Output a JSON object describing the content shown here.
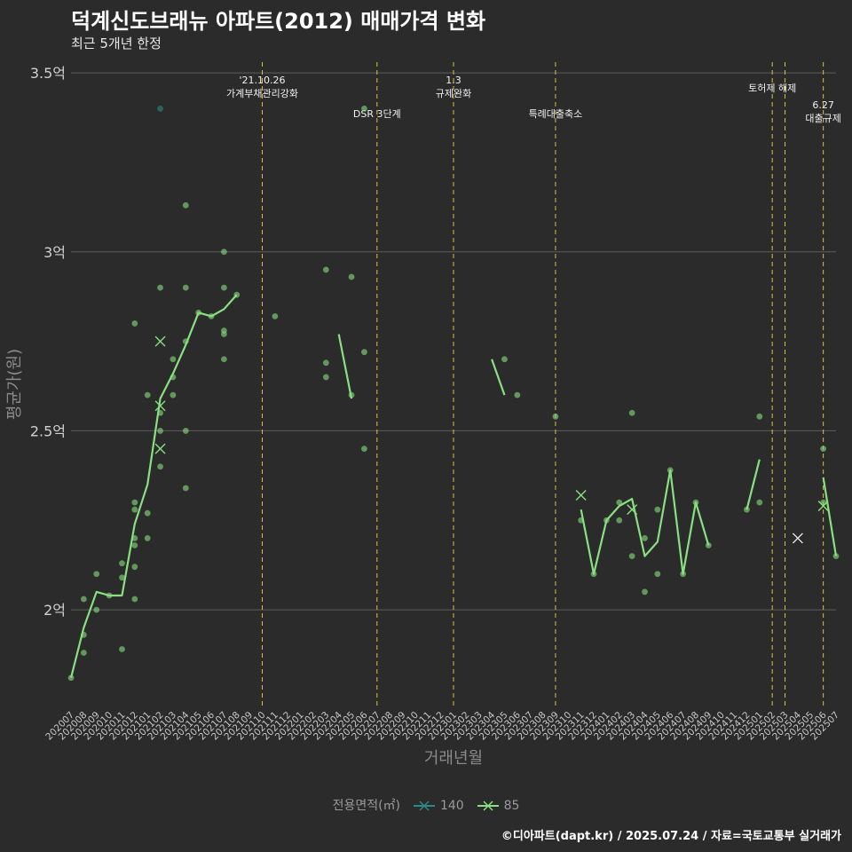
{
  "header": {
    "title": "덕계신도브래뉴 아파트(2012) 매매가격 변화",
    "subtitle": "최근 5개년 한정"
  },
  "caption": "©디아파트(dapt.kr) / 2025.07.24 / 자료=국토교통부 실거래가",
  "legend": {
    "title": "전용면적(㎡)",
    "items": [
      {
        "label": "140",
        "color": "#2a8a86"
      },
      {
        "label": "85",
        "color": "#88e080"
      }
    ]
  },
  "chart_data": {
    "type": "line",
    "title": "덕계신도브래뉴 아파트(2012) 매매가격 변화",
    "subtitle": "최근 5개년 한정",
    "xlabel": "거래년월",
    "ylabel": "평균가(원)",
    "ylim": [
      1.73,
      3.53
    ],
    "yticks": [
      {
        "value": 2.0,
        "label": "2억"
      },
      {
        "value": 2.5,
        "label": "2.5억"
      },
      {
        "value": 3.0,
        "label": "3억"
      },
      {
        "value": 3.5,
        "label": "3.5억"
      }
    ],
    "x_categories": [
      "202007",
      "202008",
      "202009",
      "202010",
      "202011",
      "202012",
      "202101",
      "202102",
      "202103",
      "202104",
      "202105",
      "202106",
      "202107",
      "202108",
      "202109",
      "202110",
      "202111",
      "202112",
      "202201",
      "202202",
      "202203",
      "202204",
      "202205",
      "202206",
      "202207",
      "202208",
      "202209",
      "202210",
      "202211",
      "202212",
      "202301",
      "202302",
      "202303",
      "202304",
      "202305",
      "202306",
      "202307",
      "202308",
      "202309",
      "202310",
      "202311",
      "202312",
      "202401",
      "202402",
      "202403",
      "202404",
      "202405",
      "202406",
      "202407",
      "202408",
      "202409",
      "202410",
      "202411",
      "202412",
      "202501",
      "202502",
      "202503",
      "202504",
      "202505",
      "202506",
      "202507"
    ],
    "events": [
      {
        "x": "202110",
        "lines": [
          "'21.10.26",
          "가계부채관리강화"
        ],
        "level": 0
      },
      {
        "x": "202207",
        "lines": [
          "DSR 3단계"
        ],
        "level": 1
      },
      {
        "x": "202301",
        "lines": [
          "1.3",
          "규제완화"
        ],
        "level": 0
      },
      {
        "x": "202309",
        "lines": [
          "특례대출축소"
        ],
        "level": 1
      },
      {
        "x": "202502",
        "lines": [
          "토허제 해제"
        ],
        "level": 0
      },
      {
        "x": "202503",
        "lines": [],
        "level": 0
      },
      {
        "x": "202506",
        "lines": [
          "6.27",
          "대출규제"
        ],
        "level": 2
      }
    ],
    "series": [
      {
        "name": "85",
        "color": "#88e080",
        "line": [
          [
            "202007",
            1.81
          ],
          [
            "202008",
            1.95
          ],
          [
            "202009",
            2.05
          ],
          [
            "202010",
            2.04
          ],
          [
            "202011",
            2.04
          ],
          [
            "202012",
            2.24
          ],
          [
            "202101",
            2.35
          ],
          [
            "202102",
            2.59
          ],
          [
            "202103",
            2.66
          ],
          [
            "202104",
            2.74
          ],
          [
            "202105",
            2.83
          ],
          [
            "202106",
            2.82
          ],
          [
            "202107",
            2.84
          ],
          [
            "202108",
            2.88
          ],
          null,
          [
            "202204",
            2.77
          ],
          [
            "202205",
            2.59
          ],
          null,
          [
            "202304",
            2.7
          ],
          [
            "202305",
            2.6
          ],
          null,
          [
            "202311",
            2.28
          ],
          [
            "202312",
            2.1
          ],
          [
            "202401",
            2.25
          ],
          [
            "202402",
            2.29
          ],
          [
            "202403",
            2.31
          ],
          [
            "202404",
            2.15
          ],
          [
            "202405",
            2.19
          ],
          [
            "202406",
            2.39
          ],
          [
            "202407",
            2.1
          ],
          [
            "202408",
            2.3
          ],
          [
            "202409",
            2.18
          ],
          null,
          [
            "202412",
            2.28
          ],
          [
            "202501",
            2.42
          ],
          null,
          [
            "202506",
            2.37
          ],
          [
            "202507",
            2.15
          ]
        ],
        "points": [
          [
            "202007",
            1.81
          ],
          [
            "202008",
            1.88
          ],
          [
            "202008",
            1.93
          ],
          [
            "202008",
            2.03
          ],
          [
            "202009",
            2.0
          ],
          [
            "202009",
            2.1
          ],
          [
            "202010",
            2.04
          ],
          [
            "202011",
            1.89
          ],
          [
            "202011",
            2.09
          ],
          [
            "202011",
            2.13
          ],
          [
            "202012",
            2.03
          ],
          [
            "202012",
            2.12
          ],
          [
            "202012",
            2.18
          ],
          [
            "202012",
            2.2
          ],
          [
            "202012",
            2.28
          ],
          [
            "202012",
            2.3
          ],
          [
            "202012",
            2.8
          ],
          [
            "202101",
            2.2
          ],
          [
            "202101",
            2.27
          ],
          [
            "202101",
            2.6
          ],
          [
            "202102",
            2.4
          ],
          [
            "202102",
            2.5
          ],
          [
            "202102",
            2.55
          ],
          [
            "202102",
            2.9
          ],
          [
            "202103",
            2.6
          ],
          [
            "202103",
            2.65
          ],
          [
            "202103",
            2.7
          ],
          [
            "202104",
            2.34
          ],
          [
            "202104",
            2.5
          ],
          [
            "202104",
            2.75
          ],
          [
            "202104",
            2.9
          ],
          [
            "202104",
            3.13
          ],
          [
            "202105",
            2.83
          ],
          [
            "202106",
            2.82
          ],
          [
            "202107",
            2.7
          ],
          [
            "202107",
            2.77
          ],
          [
            "202107",
            2.78
          ],
          [
            "202107",
            2.9
          ],
          [
            "202107",
            3.0
          ],
          [
            "202108",
            2.88
          ],
          [
            "202111",
            2.82
          ],
          [
            "202203",
            2.65
          ],
          [
            "202203",
            2.69
          ],
          [
            "202203",
            2.95
          ],
          [
            "202205",
            2.6
          ],
          [
            "202205",
            2.93
          ],
          [
            "202206",
            2.45
          ],
          [
            "202206",
            2.72
          ],
          [
            "202305",
            2.7
          ],
          [
            "202306",
            2.6
          ],
          [
            "202309",
            2.54
          ],
          [
            "202311",
            2.25
          ],
          [
            "202312",
            2.1
          ],
          [
            "202401",
            2.25
          ],
          [
            "202402",
            2.25
          ],
          [
            "202402",
            2.3
          ],
          [
            "202403",
            2.15
          ],
          [
            "202403",
            2.55
          ],
          [
            "202404",
            2.05
          ],
          [
            "202404",
            2.2
          ],
          [
            "202405",
            2.1
          ],
          [
            "202405",
            2.28
          ],
          [
            "202406",
            2.39
          ],
          [
            "202407",
            2.1
          ],
          [
            "202408",
            2.3
          ],
          [
            "202409",
            2.18
          ],
          [
            "202412",
            2.28
          ],
          [
            "202501",
            2.3
          ],
          [
            "202501",
            2.54
          ],
          [
            "202506",
            2.3
          ],
          [
            "202506",
            2.45
          ],
          [
            "202507",
            2.15
          ],
          [
            "202206",
            3.4
          ]
        ],
        "crosses": [
          [
            "202102",
            2.75
          ],
          [
            "202102",
            2.57
          ],
          [
            "202102",
            2.45
          ],
          [
            "202311",
            2.32
          ],
          [
            "202403",
            2.28
          ],
          [
            "202506",
            2.29
          ]
        ]
      },
      {
        "name": "140",
        "color": "#2a8a86",
        "line": [],
        "points": [
          [
            "202102",
            3.4
          ]
        ],
        "crosses": [
          [
            "202504",
            2.2
          ]
        ]
      }
    ]
  }
}
